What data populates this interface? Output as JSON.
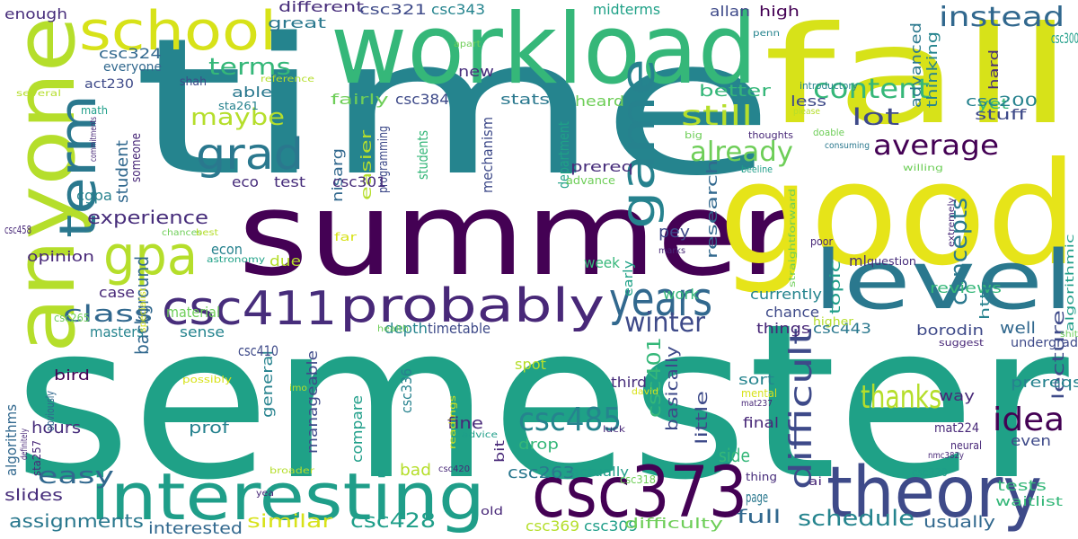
{
  "words": [
    "semester",
    "time",
    "summer",
    "good",
    "fall",
    "workload",
    "anyone",
    "level",
    "theory",
    "csc373",
    "interesting",
    "school",
    "probably",
    "csc411",
    "term",
    "grad",
    "gpa",
    "game",
    "years",
    "csc485",
    "difficult",
    "thanks",
    "idea",
    "winter",
    "average",
    "already",
    "still",
    "concepts",
    "content",
    "instead",
    "class",
    "easy",
    "maybe",
    "terms",
    "lot",
    "experience",
    "background",
    "lecture",
    "schedule",
    "assignments",
    "interested",
    "similar",
    "csc428",
    "usually",
    "slides",
    "hours",
    "prof",
    "general",
    "manageable",
    "compare",
    "fine",
    "drop",
    "bad",
    "csc263",
    "actually",
    "csc369",
    "csc309",
    "difficulty",
    "full",
    "basically",
    "csc401",
    "little",
    "side",
    "final",
    "currently",
    "chance",
    "things",
    "csc443",
    "borodin",
    "reviews",
    "topic",
    "http",
    "well",
    "mat224",
    "prereqs",
    "undergrad",
    "way",
    "tests",
    "waitlist",
    "even",
    "different",
    "great",
    "csc321",
    "csc343",
    "midterms",
    "allan",
    "high",
    "csc324",
    "everyone",
    "act230",
    "shah",
    "fairly",
    "csc384",
    "stats",
    "heard",
    "new",
    "able",
    "better",
    "less",
    "advanced",
    "thinking",
    "yet",
    "stuff",
    "csc200",
    "csc300",
    "hard",
    "penn",
    "department",
    "mechanism",
    "students",
    "easier",
    "nisarg",
    "programming",
    "student",
    "someone",
    "cgpa",
    "eco",
    "test",
    "csc301",
    "prereq",
    "advance",
    "research",
    "pey",
    "due",
    "econ",
    "opinion",
    "far",
    "ml",
    "question",
    "work",
    "week",
    "early",
    "material",
    "case",
    "csc265",
    "csc458",
    "masters",
    "sense",
    "csc410",
    "depth",
    "timetable",
    "spot",
    "csc336",
    "third",
    "sort",
    "bird",
    "algorithms",
    "sta257",
    "definitely",
    "obviously",
    "possibly",
    "readings",
    "mental",
    "mat237",
    "david",
    "luck",
    "advice",
    "neural",
    "nmc382y",
    "csc420",
    "yea",
    "broader",
    "ai",
    "thing",
    "csc320",
    "old",
    "bit",
    "page",
    "csc318",
    "enough",
    "math",
    "reference",
    "several",
    "apart",
    "introductory",
    "please",
    "thoughts",
    "doable",
    "big",
    "consuming",
    "willing",
    "beeline",
    "sta261",
    "commitments",
    "chances",
    "best",
    "astronomy",
    "specialist",
    "health",
    "imo",
    "higher",
    "suggest",
    "shit",
    "algorithmic",
    "extremely",
    "poor",
    "straightforward",
    "marks"
  ]
}
